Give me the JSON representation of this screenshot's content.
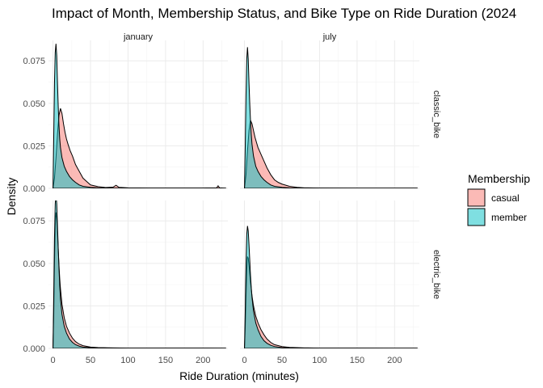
{
  "chart_data": {
    "type": "area",
    "subtype": "faceted density",
    "title": "Impact of Month, Membership Status, and Bike Type on Ride Duration (2024",
    "xlabel": "Ride Duration (minutes)",
    "ylabel": "Density",
    "xlim": [
      -6,
      233
    ],
    "ylim": [
      0,
      0.087
    ],
    "x_ticks": [
      0,
      50,
      100,
      150,
      200
    ],
    "y_ticks": [
      0,
      0.025,
      0.05,
      0.075
    ],
    "y_tick_labels": [
      "0.000",
      "0.025",
      "0.050",
      "0.075"
    ],
    "grid": true,
    "legend": {
      "title": "Membership",
      "position": "right",
      "entries": [
        {
          "name": "casual",
          "color": "#F8766D"
        },
        {
          "name": "member",
          "color": "#00BFC4"
        }
      ]
    },
    "facet_columns": [
      "january",
      "july"
    ],
    "facet_rows": [
      "classic_bike",
      "electric_bike"
    ],
    "panels": [
      {
        "month": "january",
        "bike_type": "classic_bike",
        "series": [
          {
            "name": "casual",
            "x": [
              0,
              2,
              4,
              6,
              8,
              10,
              12,
              14,
              16,
              18,
              20,
              23,
              26,
              30,
              35,
              40,
              45,
              50,
              60,
              70,
              80,
              84,
              88,
              100,
              130,
              160,
              200,
              218,
              220,
              222,
              230
            ],
            "y": [
              0,
              0.006,
              0.018,
              0.032,
              0.043,
              0.047,
              0.044,
              0.038,
              0.033,
              0.029,
              0.026,
              0.022,
              0.019,
              0.014,
              0.01,
              0.006,
              0.004,
              0.002,
              0.001,
              0.0005,
              0.0007,
              0.0018,
              0.0006,
              0.0003,
              0.0002,
              0.0002,
              0.0002,
              0.0003,
              0.0015,
              0.0003,
              0.0001
            ]
          },
          {
            "name": "member",
            "x": [
              0,
              1,
              2,
              3,
              4,
              5,
              6,
              7,
              8,
              9,
              10,
              12,
              15,
              18,
              22,
              26,
              30,
              35,
              40,
              50,
              60,
              80,
              100,
              150,
              200,
              230
            ],
            "y": [
              0,
              0.03,
              0.062,
              0.08,
              0.085,
              0.078,
              0.062,
              0.048,
              0.037,
              0.029,
              0.024,
              0.018,
              0.013,
              0.01,
              0.007,
              0.005,
              0.0035,
              0.002,
              0.0012,
              0.0006,
              0.0003,
              0.0002,
              0.0001,
              0.0001,
              0.0001,
              0.0001
            ]
          }
        ]
      },
      {
        "month": "july",
        "bike_type": "classic_bike",
        "series": [
          {
            "name": "casual",
            "x": [
              0,
              2,
              4,
              6,
              8,
              10,
              12,
              14,
              16,
              18,
              20,
              23,
              26,
              30,
              35,
              40,
              45,
              50,
              60,
              70,
              80,
              100,
              150,
              200,
              230
            ],
            "y": [
              0,
              0.008,
              0.022,
              0.034,
              0.04,
              0.038,
              0.034,
              0.03,
              0.027,
              0.024,
              0.022,
              0.019,
              0.016,
              0.012,
              0.008,
              0.005,
              0.0035,
              0.0025,
              0.0012,
              0.0006,
              0.0003,
              0.0002,
              0.0001,
              0.0001,
              0.0001
            ]
          },
          {
            "name": "member",
            "x": [
              0,
              1,
              2,
              3,
              4,
              5,
              6,
              7,
              8,
              9,
              10,
              12,
              15,
              18,
              22,
              26,
              30,
              35,
              40,
              50,
              60,
              80,
              100,
              150,
              200,
              230
            ],
            "y": [
              0,
              0.025,
              0.055,
              0.076,
              0.083,
              0.076,
              0.062,
              0.05,
              0.04,
              0.032,
              0.026,
              0.019,
              0.013,
              0.01,
              0.007,
              0.005,
              0.0035,
              0.002,
              0.0012,
              0.0006,
              0.0003,
              0.0002,
              0.0001,
              0.0001,
              0.0001,
              0.0001
            ]
          }
        ]
      },
      {
        "month": "january",
        "bike_type": "electric_bike",
        "series": [
          {
            "name": "casual",
            "x": [
              0,
              1,
              2,
              3,
              4,
              5,
              6,
              7,
              8,
              9,
              10,
              12,
              15,
              18,
              22,
              26,
              30,
              35,
              40,
              50,
              60,
              80,
              100,
              150,
              200,
              230
            ],
            "y": [
              0,
              0.02,
              0.05,
              0.072,
              0.08,
              0.077,
              0.068,
              0.058,
              0.049,
              0.041,
              0.035,
              0.026,
              0.018,
              0.013,
              0.009,
              0.006,
              0.004,
              0.0025,
              0.0016,
              0.0008,
              0.0005,
              0.0003,
              0.0002,
              0.0002,
              0.0002,
              0.0001
            ]
          },
          {
            "name": "member",
            "x": [
              0,
              1,
              2,
              3,
              4,
              5,
              6,
              7,
              8,
              9,
              10,
              12,
              15,
              18,
              22,
              26,
              30,
              35,
              40,
              50,
              60,
              80,
              100,
              150,
              200,
              230
            ],
            "y": [
              0,
              0.03,
              0.065,
              0.085,
              0.091,
              0.085,
              0.072,
              0.059,
              0.047,
              0.037,
              0.029,
              0.02,
              0.013,
              0.009,
              0.0055,
              0.0035,
              0.0022,
              0.0013,
              0.0008,
              0.0004,
              0.0003,
              0.0002,
              0.0001,
              0.0001,
              0.0001,
              0.0001
            ]
          }
        ]
      },
      {
        "month": "july",
        "bike_type": "electric_bike",
        "series": [
          {
            "name": "casual",
            "x": [
              0,
              1,
              2,
              3,
              4,
              5,
              6,
              7,
              8,
              9,
              10,
              12,
              15,
              18,
              22,
              26,
              30,
              35,
              40,
              50,
              60,
              80,
              100,
              150,
              200,
              230
            ],
            "y": [
              0,
              0.012,
              0.03,
              0.046,
              0.054,
              0.053,
              0.049,
              0.044,
              0.039,
              0.035,
              0.031,
              0.025,
              0.019,
              0.015,
              0.011,
              0.008,
              0.0055,
              0.0035,
              0.0022,
              0.0011,
              0.0006,
              0.0003,
              0.0002,
              0.0002,
              0.0001,
              0.0001
            ]
          },
          {
            "name": "member",
            "x": [
              0,
              1,
              2,
              3,
              4,
              5,
              6,
              7,
              8,
              9,
              10,
              12,
              15,
              18,
              22,
              26,
              30,
              35,
              40,
              50,
              60,
              80,
              100,
              150,
              200,
              230
            ],
            "y": [
              0,
              0.022,
              0.05,
              0.067,
              0.072,
              0.069,
              0.061,
              0.052,
              0.043,
              0.036,
              0.03,
              0.022,
              0.015,
              0.011,
              0.007,
              0.0045,
              0.003,
              0.0018,
              0.0011,
              0.0005,
              0.0003,
              0.0002,
              0.0001,
              0.0001,
              0.0001,
              0.0001
            ]
          }
        ]
      }
    ]
  }
}
